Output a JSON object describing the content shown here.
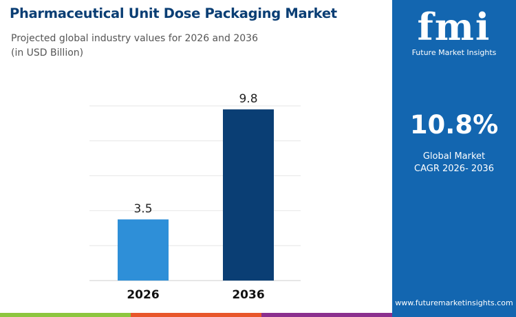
{
  "header": {
    "title": "Pharmaceutical Unit Dose Packaging Market",
    "subtitle_line1": "Projected global industry values for 2026 and 2036",
    "subtitle_line2": "(in USD Billion)"
  },
  "panel": {
    "logo_text": "fmi",
    "logo_subtext": "Future Market Insights",
    "cagr_value": "10.8%",
    "cagr_label_line1": "Global Market",
    "cagr_label_line2": "CAGR 2026- 2036",
    "website": "www.futuremarketinsights.com",
    "background": "#1366b0"
  },
  "footer_stripes": [
    "#8dc63f",
    "#e8562a",
    "#8b2f8e",
    "#1366b0"
  ],
  "chart_data": {
    "type": "bar",
    "categories": [
      "2026",
      "2036"
    ],
    "values": [
      3.5,
      9.8
    ],
    "labels": [
      "3.5",
      "9.8"
    ],
    "colors": [
      "#2e8fd8",
      "#0a3e74"
    ],
    "ylim": [
      0,
      10
    ],
    "grid": true,
    "xlabel": "",
    "ylabel": ""
  }
}
